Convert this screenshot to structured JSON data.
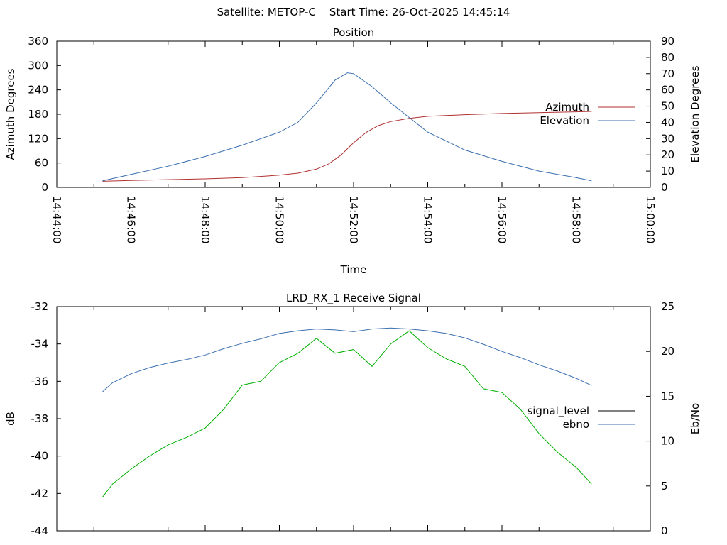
{
  "header": {
    "text": "Satellite: METOP-C    Start Time: 26-Oct-2025 14:45:14"
  },
  "chart_data": [
    {
      "type": "line",
      "title": "Position",
      "xlabel": "Time",
      "ylabel": "Azimuth Degrees",
      "y2label": "Elevation Degrees",
      "xlim": [
        "14:44:00",
        "15:00:00"
      ],
      "ylim": [
        0,
        360
      ],
      "y2lim": [
        0,
        90
      ],
      "x_ticks": [
        "14:44:00",
        "14:46:00",
        "14:48:00",
        "14:50:00",
        "14:52:00",
        "14:54:00",
        "14:56:00",
        "14:58:00",
        "15:00:00"
      ],
      "y_ticks": [
        "0",
        "60",
        "120",
        "180",
        "240",
        "300",
        "360"
      ],
      "y2_ticks": [
        "0",
        "10",
        "20",
        "30",
        "40",
        "50",
        "60",
        "70",
        "80",
        "90"
      ],
      "legend_position": "right",
      "series": [
        {
          "name": "Azimuth",
          "axis": "y",
          "color": "#b03030",
          "x": [
            "14:45:14",
            "14:46:00",
            "14:47:00",
            "14:48:00",
            "14:49:00",
            "14:50:00",
            "14:50:30",
            "14:51:00",
            "14:51:20",
            "14:51:40",
            "14:52:00",
            "14:52:20",
            "14:52:40",
            "14:53:00",
            "14:53:30",
            "14:54:00",
            "14:55:00",
            "14:56:00",
            "14:57:00",
            "14:58:00",
            "14:58:25"
          ],
          "values": [
            15,
            17,
            19,
            21,
            24,
            30,
            35,
            45,
            58,
            80,
            110,
            135,
            152,
            162,
            170,
            175,
            179,
            182,
            184,
            186,
            187
          ]
        },
        {
          "name": "Elevation",
          "axis": "y2",
          "color": "#3a6fb0",
          "x": [
            "14:45:14",
            "14:46:00",
            "14:47:00",
            "14:48:00",
            "14:49:00",
            "14:50:00",
            "14:50:30",
            "14:51:00",
            "14:51:30",
            "14:51:50",
            "14:52:00",
            "14:52:30",
            "14:53:00",
            "14:53:30",
            "14:54:00",
            "14:55:00",
            "14:56:00",
            "14:57:00",
            "14:58:00",
            "14:58:25"
          ],
          "values": [
            4,
            8,
            13,
            19,
            26,
            34,
            40,
            52,
            66,
            70.5,
            70,
            62,
            52,
            43,
            34,
            23,
            16,
            10,
            6,
            4
          ]
        }
      ]
    },
    {
      "type": "line",
      "title": "LRD_RX_1 Receive Signal",
      "xlabel": "",
      "ylabel": "dB",
      "y2label": "Eb/No",
      "xlim": [
        "14:44:00",
        "15:00:00"
      ],
      "ylim": [
        -44,
        -32
      ],
      "y2lim": [
        0,
        25
      ],
      "y_ticks": [
        "-32",
        "-34",
        "-36",
        "-38",
        "-40",
        "-42",
        "-44"
      ],
      "y2_ticks": [
        "0",
        "5",
        "10",
        "15",
        "20",
        "25"
      ],
      "legend_position": "right",
      "series": [
        {
          "name": "signal_level",
          "axis": "y",
          "color": "#00b000",
          "x": [
            "14:45:14",
            "14:45:30",
            "14:46:00",
            "14:46:30",
            "14:47:00",
            "14:47:30",
            "14:48:00",
            "14:48:30",
            "14:49:00",
            "14:49:30",
            "14:50:00",
            "14:50:30",
            "14:51:00",
            "14:51:30",
            "14:52:00",
            "14:52:30",
            "14:53:00",
            "14:53:30",
            "14:54:00",
            "14:54:30",
            "14:55:00",
            "14:55:30",
            "14:56:00",
            "14:56:30",
            "14:57:00",
            "14:57:30",
            "14:58:00",
            "14:58:25"
          ],
          "values": [
            -42.2,
            -41.5,
            -40.7,
            -40.0,
            -39.4,
            -39.0,
            -38.5,
            -37.5,
            -36.2,
            -36.0,
            -35.0,
            -34.5,
            -33.7,
            -34.5,
            -34.3,
            -35.2,
            -34.0,
            -33.3,
            -34.2,
            -34.8,
            -35.2,
            -36.4,
            -36.6,
            -37.5,
            -38.8,
            -39.8,
            -40.6,
            -41.5
          ]
        },
        {
          "name": "ebno",
          "axis": "y2",
          "color": "#3a6fb0",
          "x": [
            "14:45:14",
            "14:45:30",
            "14:46:00",
            "14:46:30",
            "14:47:00",
            "14:47:30",
            "14:48:00",
            "14:48:30",
            "14:49:00",
            "14:49:30",
            "14:50:00",
            "14:50:30",
            "14:51:00",
            "14:51:30",
            "14:52:00",
            "14:52:30",
            "14:53:00",
            "14:53:30",
            "14:54:00",
            "14:54:30",
            "14:55:00",
            "14:55:30",
            "14:56:00",
            "14:56:30",
            "14:57:00",
            "14:57:30",
            "14:58:00",
            "14:58:25"
          ],
          "values": [
            15.5,
            16.5,
            17.5,
            18.2,
            18.7,
            19.1,
            19.6,
            20.3,
            20.9,
            21.4,
            22.0,
            22.3,
            22.5,
            22.4,
            22.2,
            22.5,
            22.6,
            22.5,
            22.3,
            22.0,
            21.5,
            20.8,
            20.0,
            19.3,
            18.5,
            17.8,
            17.0,
            16.2
          ]
        }
      ]
    }
  ]
}
